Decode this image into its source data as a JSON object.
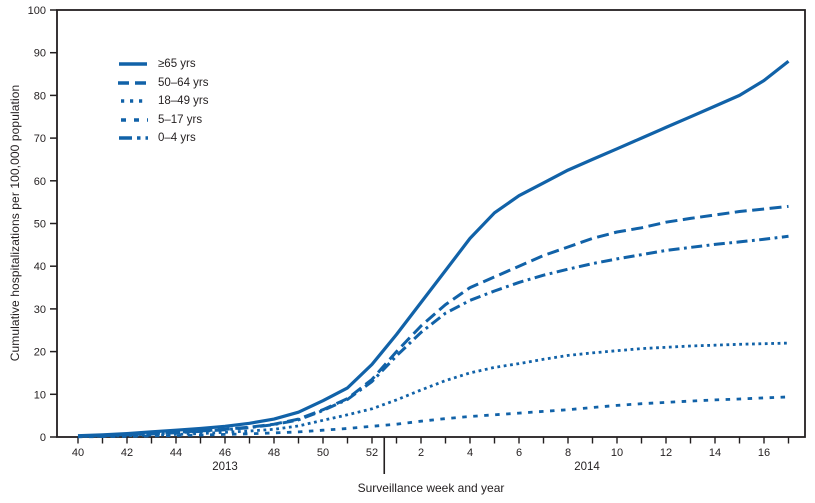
{
  "chart_data": {
    "type": "line",
    "title": "",
    "xlabel": "Surveillance week and year",
    "ylabel": "Cumulative hospitalizations per 100,000 population",
    "year_labels": [
      "2013",
      "2014"
    ],
    "categories": [
      "40",
      "41",
      "42",
      "43",
      "44",
      "45",
      "46",
      "47",
      "48",
      "49",
      "50",
      "51",
      "52",
      "1",
      "2",
      "3",
      "4",
      "5",
      "6",
      "7",
      "8",
      "9",
      "10",
      "11",
      "12",
      "13",
      "14",
      "15",
      "16",
      "17"
    ],
    "x_label_rule": "even weeks only",
    "ylim": [
      0,
      100
    ],
    "yticks": [
      0,
      10,
      20,
      30,
      40,
      50,
      60,
      70,
      80,
      90,
      100
    ],
    "line_color": "#1162A8",
    "axis_color": "#231F20",
    "legend_position": "top-left inside plot",
    "grid": false,
    "series": [
      {
        "key": "65plus",
        "name": "≥65 yrs",
        "dash": "solid",
        "values": [
          0.3,
          0.5,
          0.8,
          1.2,
          1.6,
          2.0,
          2.5,
          3.2,
          4.2,
          5.8,
          8.5,
          11.5,
          17,
          24,
          31.5,
          39,
          46.5,
          52.5,
          56.5,
          59.5,
          62.5,
          65,
          67.5,
          70,
          72.5,
          75,
          77.5,
          80,
          83.5,
          88
        ]
      },
      {
        "key": "50-64",
        "name": "50–64 yrs",
        "dash": "long-dash",
        "values": [
          0.2,
          0.35,
          0.55,
          0.8,
          1.1,
          1.4,
          1.8,
          2.3,
          3.0,
          4.2,
          6.4,
          9.0,
          13.5,
          20,
          26,
          31,
          35,
          37.5,
          40,
          42.5,
          44.5,
          46.5,
          48,
          49,
          50.3,
          51.2,
          52,
          52.8,
          53.4,
          54
        ]
      },
      {
        "key": "18-49",
        "name": "18–49 yrs",
        "dash": "dotted",
        "values": [
          0.1,
          0.2,
          0.3,
          0.45,
          0.6,
          0.8,
          1.1,
          1.4,
          1.8,
          2.6,
          3.9,
          5.2,
          6.6,
          8.7,
          11,
          13.2,
          15,
          16.3,
          17.2,
          18.2,
          19.1,
          19.7,
          20.2,
          20.7,
          21,
          21.3,
          21.5,
          21.7,
          21.85,
          22
        ]
      },
      {
        "key": "5-17",
        "name": "5–17 yrs",
        "dash": "short-dash",
        "values": [
          0.05,
          0.1,
          0.15,
          0.25,
          0.35,
          0.45,
          0.6,
          0.75,
          0.95,
          1.2,
          1.6,
          2.0,
          2.5,
          3.0,
          3.7,
          4.3,
          4.8,
          5.2,
          5.6,
          6.0,
          6.4,
          6.9,
          7.4,
          7.8,
          8.1,
          8.4,
          8.7,
          8.9,
          9.15,
          9.4
        ]
      },
      {
        "key": "0-4",
        "name": "0–4 yrs",
        "dash": "dash-dot",
        "values": [
          0.2,
          0.3,
          0.5,
          0.7,
          1.0,
          1.3,
          1.7,
          2.2,
          2.9,
          4.0,
          6.2,
          8.8,
          13,
          19,
          24.5,
          29,
          32,
          34.2,
          36.2,
          37.9,
          39.3,
          40.6,
          41.7,
          42.7,
          43.7,
          44.4,
          45.1,
          45.7,
          46.3,
          47
        ]
      }
    ]
  }
}
